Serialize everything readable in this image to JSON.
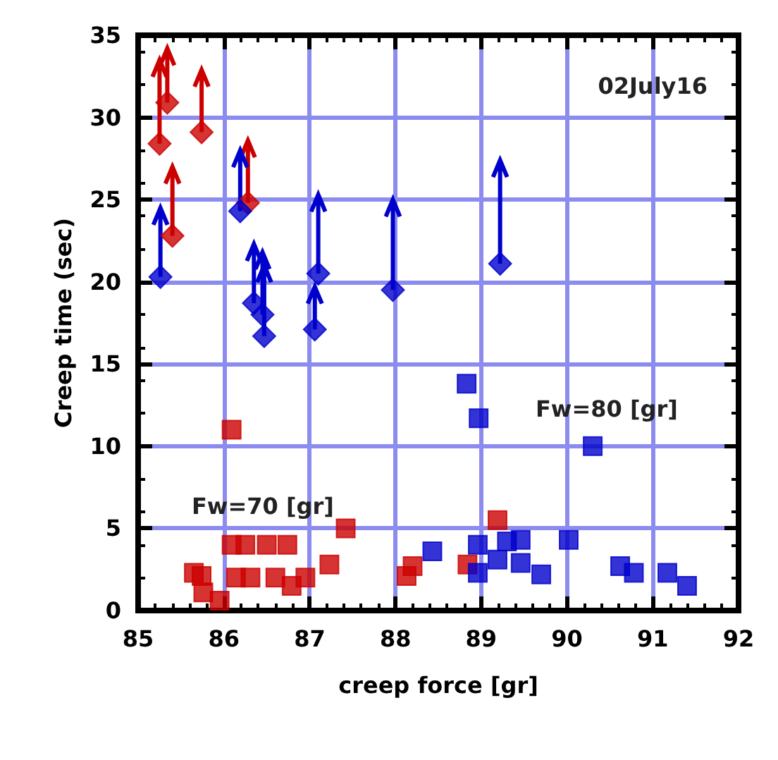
{
  "chart_data": {
    "type": "scatter",
    "xlabel": "creep force [gr]",
    "ylabel": "Creep time (sec)",
    "xlim": [
      85,
      92
    ],
    "xticks": [
      85,
      86,
      87,
      88,
      89,
      90,
      91,
      92
    ],
    "ylim": [
      0,
      35
    ],
    "yticks": [
      0,
      5,
      10,
      15,
      20,
      25,
      30,
      35
    ],
    "grid": true,
    "annotations": [
      "02July16",
      "Fw=70 [gr]",
      "Fw=80 [gr]"
    ],
    "series": [
      {
        "color": "#cc0000",
        "marker": "diamond",
        "x": [
          85.25,
          85.34,
          85.74,
          85.4,
          86.28
        ],
        "values": [
          28.4,
          30.9,
          29.1,
          22.8,
          24.8
        ],
        "errors": [
          [
            28.4,
            33.5
          ],
          [
            30.9,
            34.2
          ],
          [
            29.1,
            32.9
          ],
          [
            22.8,
            27.0
          ],
          [
            24.8,
            28.6
          ]
        ]
      },
      {
        "color": "#0000cc",
        "marker": "diamond",
        "x": [
          85.26,
          86.19,
          86.47,
          86.35,
          86.45,
          87.06,
          87.1,
          87.97,
          89.22
        ],
        "values": [
          20.3,
          24.3,
          16.7,
          18.7,
          18.0,
          17.1,
          20.5,
          19.5,
          21.1
        ],
        "errors": [
          [
            20.3,
            24.5
          ],
          [
            24.3,
            28.0
          ],
          [
            16.7,
            21.0
          ],
          [
            18.7,
            22.3
          ],
          [
            18.0,
            21.8
          ],
          [
            17.1,
            19.7
          ],
          [
            20.5,
            25.3
          ],
          [
            19.5,
            25.0
          ],
          [
            21.1,
            27.4
          ]
        ]
      },
      {
        "color": "#cc0000",
        "marker": "square",
        "x": [
          86.09,
          86.09,
          86.25,
          86.5,
          86.74,
          87.42,
          85.65,
          85.74,
          85.76,
          85.95,
          86.14,
          86.31,
          86.6,
          86.79,
          86.95,
          87.23,
          88.13,
          88.2,
          89.19,
          88.84
        ],
        "values": [
          11.0,
          4.0,
          4.0,
          4.0,
          4.0,
          5.0,
          2.3,
          2.1,
          1.1,
          0.6,
          2.0,
          2.0,
          2.0,
          1.5,
          2.0,
          2.8,
          2.1,
          2.7,
          5.5,
          2.8
        ]
      },
      {
        "color": "#0000cc",
        "marker": "square",
        "x": [
          88.83,
          88.97,
          90.3,
          88.43,
          88.96,
          88.96,
          89.19,
          89.3,
          89.46,
          89.46,
          89.7,
          90.02,
          90.62,
          90.78,
          91.17,
          91.4
        ],
        "values": [
          13.8,
          11.7,
          10.0,
          3.6,
          4.0,
          2.3,
          3.1,
          4.2,
          4.3,
          2.9,
          2.2,
          4.3,
          2.7,
          2.3,
          2.3,
          1.5
        ]
      }
    ]
  }
}
